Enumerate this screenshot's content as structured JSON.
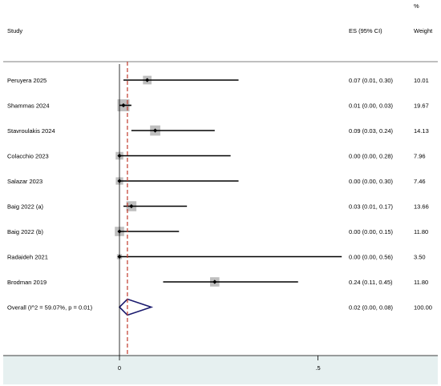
{
  "chart_data": {
    "type": "forest",
    "header": {
      "study": "Study",
      "es": "ES (95% CI)",
      "weight_pct": "%",
      "weight": "Weight"
    },
    "studies": [
      {
        "label": "Peruyera 2025",
        "es": 0.07,
        "lo": 0.01,
        "hi": 0.3,
        "es_text": "0.07 (0.01, 0.30)",
        "weight": "10.01"
      },
      {
        "label": "Shammas 2024",
        "es": 0.01,
        "lo": 0.0,
        "hi": 0.03,
        "es_text": "0.01 (0.00, 0.03)",
        "weight": "19.67"
      },
      {
        "label": "Stavroulakis 2024",
        "es": 0.09,
        "lo": 0.03,
        "hi": 0.24,
        "es_text": "0.09 (0.03, 0.24)",
        "weight": "14.13"
      },
      {
        "label": "Colacchio 2023",
        "es": 0.0,
        "lo": 0.0,
        "hi": 0.28,
        "es_text": "0.00 (0.00, 0.28)",
        "weight": "7.96"
      },
      {
        "label": "Salazar 2023",
        "es": 0.0,
        "lo": 0.0,
        "hi": 0.3,
        "es_text": "0.00 (0.00, 0.30)",
        "weight": "7.46"
      },
      {
        "label": "Baig 2022 (a)",
        "es": 0.03,
        "lo": 0.01,
        "hi": 0.17,
        "es_text": "0.03 (0.01, 0.17)",
        "weight": "13.66"
      },
      {
        "label": "Baig 2022 (b)",
        "es": 0.0,
        "lo": 0.0,
        "hi": 0.15,
        "es_text": "0.00 (0.00, 0.15)",
        "weight": "11.80"
      },
      {
        "label": "Radaideh 2021",
        "es": 0.0,
        "lo": 0.0,
        "hi": 0.56,
        "es_text": "0.00 (0.00, 0.56)",
        "weight": "3.50"
      },
      {
        "label": "Brodman 2019",
        "es": 0.24,
        "lo": 0.11,
        "hi": 0.45,
        "es_text": "0.24 (0.11, 0.45)",
        "weight": "11.80"
      }
    ],
    "overall": {
      "label": "Overall  (I^2 = 59.07%, p = 0.01)",
      "es": 0.02,
      "lo": 0.0,
      "hi": 0.08,
      "es_text": "0.02 (0.00, 0.08)",
      "weight": "100.00"
    },
    "x_ticks": [
      {
        "value": 0,
        "label": "0"
      },
      {
        "value": 0.5,
        "label": ".5"
      }
    ],
    "reference_line": 0.02,
    "colors": {
      "ci_line": "#000000",
      "box": "#bfbfbf",
      "point": "#000000",
      "diamond": "#1a1a6e",
      "reference": "#c0392b",
      "axis_band": "#e6f0f0"
    }
  }
}
